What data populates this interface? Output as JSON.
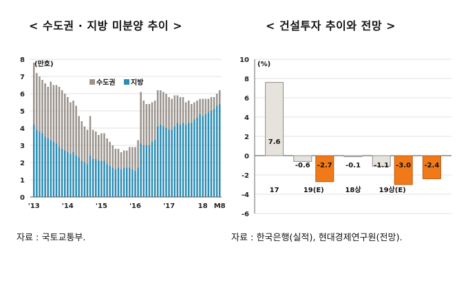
{
  "left": {
    "title": "< 수도권 · 지방 미분양 추이 >",
    "source": "자료 : 국토교통부.",
    "chart_data": {
      "type": "bar",
      "stacked": true,
      "ylabel": "(만호)",
      "ylim": [
        0,
        8
      ],
      "yticks": [
        "0",
        "1",
        "2",
        "3",
        "4",
        "5",
        "6",
        "7",
        "8"
      ],
      "xticks": [
        "'13",
        "'14",
        "'15",
        "'16",
        "'17",
        "18",
        "M8"
      ],
      "legend": {
        "position": "top-center"
      },
      "series": [
        {
          "name": "수도권",
          "color": "#9a938c",
          "values": [
            3.6,
            3.3,
            3.2,
            3.1,
            3.1,
            3.0,
            3.4,
            3.3,
            3.4,
            3.5,
            3.4,
            3.3,
            3.2,
            3.0,
            3.0,
            2.9,
            2.4,
            2.3,
            2.1,
            2.0,
            2.3,
            1.7,
            1.6,
            1.5,
            1.6,
            1.6,
            1.5,
            1.4,
            1.3,
            1.2,
            1.1,
            1.0,
            1.0,
            1.0,
            1.2,
            1.3,
            1.4,
            1.6,
            3.0,
            2.6,
            2.4,
            2.4,
            2.3,
            2.3,
            2.1,
            2.0,
            2.0,
            2.0,
            1.9,
            1.8,
            1.8,
            1.6,
            1.6,
            1.5,
            1.3,
            1.3,
            1.1,
            1.0,
            1.0,
            0.9,
            1.0,
            0.9,
            0.8,
            0.8,
            0.7,
            0.7,
            0.8
          ]
        },
        {
          "name": "지방",
          "color": "#2b8cb4",
          "values": [
            4.2,
            3.9,
            3.8,
            3.7,
            3.5,
            3.4,
            3.3,
            3.2,
            3.1,
            2.9,
            2.8,
            2.7,
            2.6,
            2.5,
            2.6,
            2.4,
            2.3,
            2.1,
            2.0,
            1.9,
            2.4,
            2.2,
            2.2,
            2.1,
            2.1,
            2.1,
            1.9,
            1.8,
            1.7,
            1.6,
            1.7,
            1.6,
            1.7,
            1.7,
            1.7,
            1.6,
            1.5,
            1.7,
            3.1,
            3.0,
            3.0,
            3.0,
            3.2,
            3.3,
            4.1,
            4.2,
            4.1,
            4.0,
            3.9,
            3.9,
            4.1,
            4.3,
            4.2,
            4.3,
            4.2,
            4.3,
            4.3,
            4.5,
            4.6,
            4.8,
            4.7,
            4.8,
            4.9,
            5.0,
            5.1,
            5.3,
            5.4
          ]
        }
      ]
    }
  },
  "right": {
    "title": "< 건설투자 추이와 전망 >",
    "source": "자료 : 한국은행(실적), 현대경제연구원(전망).",
    "chart_data": {
      "type": "bar",
      "ylabel": "(%)",
      "ylim": [
        -6,
        10
      ],
      "yticks": [
        "-6",
        "-4",
        "-2",
        "0",
        "2",
        "4",
        "6",
        "8",
        "10"
      ],
      "categories": [
        "17",
        "19(E)",
        "18상",
        "19상(E)"
      ],
      "bars": [
        {
          "value": 7.6,
          "label": "7.6",
          "kind": "actual",
          "group": 0
        },
        {
          "value": -0.6,
          "label": "-0.6",
          "kind": "actual",
          "group": 1
        },
        {
          "value": -2.7,
          "label": "-2.7",
          "kind": "forecast",
          "group": 1
        },
        {
          "value": -0.1,
          "label": "-0.1",
          "kind": "actual",
          "group": 2
        },
        {
          "value": -1.1,
          "label": "-1.1",
          "kind": "actual",
          "group": 3
        },
        {
          "value": -3.0,
          "label": "-3.0",
          "kind": "forecast",
          "group": 3
        },
        {
          "value": -2.4,
          "label": "-2.4",
          "kind": "forecast",
          "group": 4
        }
      ],
      "colors": {
        "actual": "#e6e2dc",
        "forecast": "#f07a1a"
      }
    }
  }
}
